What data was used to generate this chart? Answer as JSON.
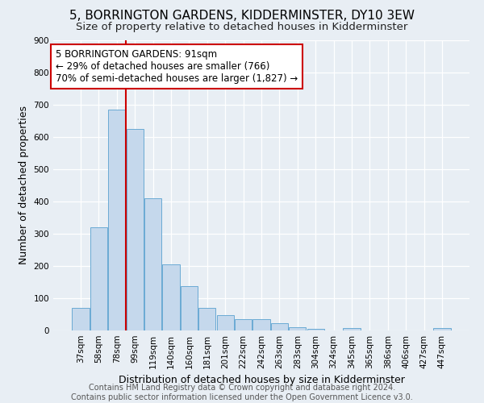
{
  "title1": "5, BORRINGTON GARDENS, KIDDERMINSTER, DY10 3EW",
  "title2": "Size of property relative to detached houses in Kidderminster",
  "xlabel": "Distribution of detached houses by size in Kidderminster",
  "ylabel": "Number of detached properties",
  "categories": [
    "37sqm",
    "58sqm",
    "78sqm",
    "99sqm",
    "119sqm",
    "140sqm",
    "160sqm",
    "181sqm",
    "201sqm",
    "222sqm",
    "242sqm",
    "263sqm",
    "283sqm",
    "304sqm",
    "324sqm",
    "345sqm",
    "365sqm",
    "386sqm",
    "406sqm",
    "427sqm",
    "447sqm"
  ],
  "values": [
    70,
    320,
    685,
    625,
    410,
    205,
    137,
    70,
    48,
    35,
    35,
    22,
    10,
    5,
    0,
    8,
    0,
    0,
    0,
    0,
    8
  ],
  "bar_color": "#c5d8ec",
  "bar_edge_color": "#6aaad4",
  "vline_color": "#cc0000",
  "annotation_text": "5 BORRINGTON GARDENS: 91sqm\n← 29% of detached houses are smaller (766)\n70% of semi-detached houses are larger (1,827) →",
  "annotation_box_color": "#ffffff",
  "annotation_box_edge_color": "#cc0000",
  "ylim": [
    0,
    900
  ],
  "yticks": [
    0,
    100,
    200,
    300,
    400,
    500,
    600,
    700,
    800,
    900
  ],
  "footer_text": "Contains HM Land Registry data © Crown copyright and database right 2024.\nContains public sector information licensed under the Open Government Licence v3.0.",
  "bg_color": "#e8eef4",
  "plot_bg_color": "#e8eef4",
  "grid_color": "#ffffff",
  "title1_fontsize": 11,
  "title2_fontsize": 9.5,
  "xlabel_fontsize": 9,
  "ylabel_fontsize": 9,
  "tick_fontsize": 7.5,
  "annotation_fontsize": 8.5,
  "footer_fontsize": 7
}
